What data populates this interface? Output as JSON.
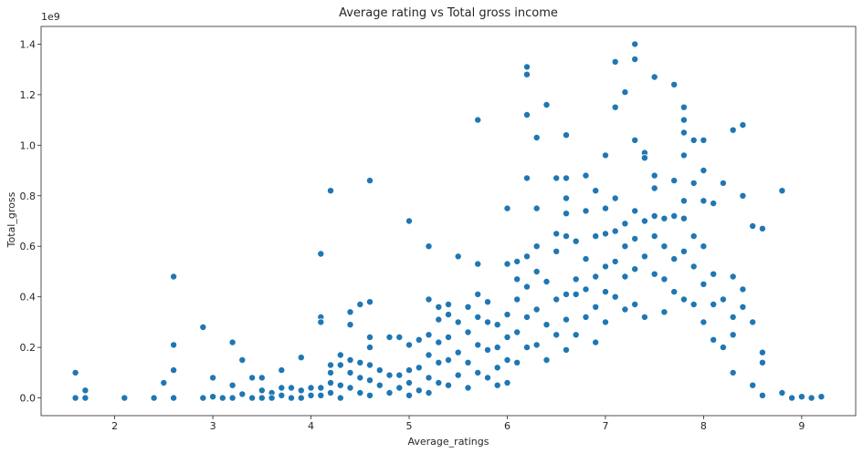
{
  "chart_data": {
    "type": "scatter",
    "title": "Average rating vs Total gross income",
    "xlabel": "Average_ratings",
    "ylabel": "Total_gross",
    "y_offset_label": "1e9",
    "xlim": [
      1.25,
      9.55
    ],
    "ylim": [
      -0.07,
      1.47
    ],
    "x_ticks": [
      2,
      3,
      4,
      5,
      6,
      7,
      8,
      9
    ],
    "x_tick_labels": [
      "2",
      "3",
      "4",
      "5",
      "6",
      "7",
      "8",
      "9"
    ],
    "y_ticks": [
      0.0,
      0.2,
      0.4,
      0.6,
      0.8,
      1.0,
      1.2,
      1.4
    ],
    "y_tick_labels": [
      "0.0",
      "0.2",
      "0.4",
      "0.6",
      "0.8",
      "1.0",
      "1.2",
      "1.4"
    ],
    "grid": false,
    "legend": "none",
    "point_color": "#1f77b4",
    "points": [
      [
        1.6,
        0.1
      ],
      [
        1.6,
        0.0
      ],
      [
        1.7,
        0.03
      ],
      [
        1.7,
        0.0
      ],
      [
        2.1,
        0.0
      ],
      [
        2.4,
        0.0
      ],
      [
        2.5,
        0.06
      ],
      [
        2.6,
        0.48
      ],
      [
        2.6,
        0.21
      ],
      [
        2.6,
        0.11
      ],
      [
        2.6,
        0.0
      ],
      [
        2.9,
        0.28
      ],
      [
        2.9,
        0.0
      ],
      [
        3.0,
        0.08
      ],
      [
        3.0,
        0.005
      ],
      [
        3.1,
        0.0
      ],
      [
        3.2,
        0.22
      ],
      [
        3.2,
        0.05
      ],
      [
        3.2,
        0.0
      ],
      [
        3.3,
        0.15
      ],
      [
        3.3,
        0.015
      ],
      [
        3.4,
        0.08
      ],
      [
        3.4,
        0.0
      ],
      [
        3.5,
        0.08
      ],
      [
        3.5,
        0.03
      ],
      [
        3.5,
        0.0
      ],
      [
        3.6,
        0.02
      ],
      [
        3.6,
        0.0
      ],
      [
        3.7,
        0.11
      ],
      [
        3.7,
        0.04
      ],
      [
        3.7,
        0.01
      ],
      [
        3.8,
        0.04
      ],
      [
        3.8,
        0.0
      ],
      [
        3.9,
        0.16
      ],
      [
        3.9,
        0.03
      ],
      [
        3.9,
        0.0
      ],
      [
        4.0,
        0.04
      ],
      [
        4.0,
        0.01
      ],
      [
        4.1,
        0.57
      ],
      [
        4.1,
        0.32
      ],
      [
        4.1,
        0.3
      ],
      [
        4.1,
        0.04
      ],
      [
        4.1,
        0.01
      ],
      [
        4.2,
        0.82
      ],
      [
        4.2,
        0.13
      ],
      [
        4.2,
        0.1
      ],
      [
        4.2,
        0.06
      ],
      [
        4.2,
        0.02
      ],
      [
        4.3,
        0.17
      ],
      [
        4.3,
        0.13
      ],
      [
        4.3,
        0.05
      ],
      [
        4.3,
        0.0
      ],
      [
        4.4,
        0.34
      ],
      [
        4.4,
        0.29
      ],
      [
        4.4,
        0.15
      ],
      [
        4.4,
        0.1
      ],
      [
        4.4,
        0.04
      ],
      [
        4.5,
        0.37
      ],
      [
        4.5,
        0.14
      ],
      [
        4.5,
        0.08
      ],
      [
        4.5,
        0.02
      ],
      [
        4.6,
        0.86
      ],
      [
        4.6,
        0.38
      ],
      [
        4.6,
        0.24
      ],
      [
        4.6,
        0.2
      ],
      [
        4.6,
        0.13
      ],
      [
        4.6,
        0.07
      ],
      [
        4.6,
        0.01
      ],
      [
        4.7,
        0.11
      ],
      [
        4.7,
        0.05
      ],
      [
        4.8,
        0.24
      ],
      [
        4.8,
        0.09
      ],
      [
        4.8,
        0.02
      ],
      [
        4.9,
        0.24
      ],
      [
        4.9,
        0.09
      ],
      [
        4.9,
        0.04
      ],
      [
        5.0,
        0.7
      ],
      [
        5.0,
        0.21
      ],
      [
        5.0,
        0.11
      ],
      [
        5.0,
        0.06
      ],
      [
        5.0,
        0.01
      ],
      [
        5.1,
        0.23
      ],
      [
        5.1,
        0.12
      ],
      [
        5.1,
        0.03
      ],
      [
        5.2,
        0.6
      ],
      [
        5.2,
        0.39
      ],
      [
        5.2,
        0.25
      ],
      [
        5.2,
        0.17
      ],
      [
        5.2,
        0.08
      ],
      [
        5.2,
        0.02
      ],
      [
        5.3,
        0.36
      ],
      [
        5.3,
        0.31
      ],
      [
        5.3,
        0.22
      ],
      [
        5.3,
        0.14
      ],
      [
        5.3,
        0.06
      ],
      [
        5.4,
        0.37
      ],
      [
        5.4,
        0.33
      ],
      [
        5.4,
        0.24
      ],
      [
        5.4,
        0.15
      ],
      [
        5.4,
        0.05
      ],
      [
        5.5,
        0.56
      ],
      [
        5.5,
        0.3
      ],
      [
        5.5,
        0.18
      ],
      [
        5.5,
        0.09
      ],
      [
        5.6,
        0.36
      ],
      [
        5.6,
        0.26
      ],
      [
        5.6,
        0.14
      ],
      [
        5.6,
        0.04
      ],
      [
        5.7,
        1.1
      ],
      [
        5.7,
        0.53
      ],
      [
        5.7,
        0.41
      ],
      [
        5.7,
        0.32
      ],
      [
        5.7,
        0.21
      ],
      [
        5.7,
        0.1
      ],
      [
        5.8,
        0.38
      ],
      [
        5.8,
        0.3
      ],
      [
        5.8,
        0.19
      ],
      [
        5.8,
        0.08
      ],
      [
        5.9,
        0.29
      ],
      [
        5.9,
        0.2
      ],
      [
        5.9,
        0.12
      ],
      [
        5.9,
        0.05
      ],
      [
        6.0,
        0.75
      ],
      [
        6.0,
        0.53
      ],
      [
        6.0,
        0.33
      ],
      [
        6.0,
        0.24
      ],
      [
        6.0,
        0.15
      ],
      [
        6.0,
        0.06
      ],
      [
        6.1,
        0.54
      ],
      [
        6.1,
        0.47
      ],
      [
        6.1,
        0.39
      ],
      [
        6.1,
        0.26
      ],
      [
        6.1,
        0.14
      ],
      [
        6.2,
        1.31
      ],
      [
        6.2,
        1.28
      ],
      [
        6.2,
        1.12
      ],
      [
        6.2,
        0.87
      ],
      [
        6.2,
        0.56
      ],
      [
        6.2,
        0.44
      ],
      [
        6.2,
        0.32
      ],
      [
        6.2,
        0.2
      ],
      [
        6.3,
        1.03
      ],
      [
        6.3,
        0.75
      ],
      [
        6.3,
        0.6
      ],
      [
        6.3,
        0.5
      ],
      [
        6.3,
        0.35
      ],
      [
        6.3,
        0.21
      ],
      [
        6.4,
        1.16
      ],
      [
        6.4,
        0.46
      ],
      [
        6.4,
        0.29
      ],
      [
        6.4,
        0.15
      ],
      [
        6.5,
        0.87
      ],
      [
        6.5,
        0.65
      ],
      [
        6.5,
        0.58
      ],
      [
        6.5,
        0.39
      ],
      [
        6.5,
        0.25
      ],
      [
        6.6,
        1.04
      ],
      [
        6.6,
        0.87
      ],
      [
        6.6,
        0.79
      ],
      [
        6.6,
        0.73
      ],
      [
        6.6,
        0.64
      ],
      [
        6.6,
        0.41
      ],
      [
        6.6,
        0.31
      ],
      [
        6.6,
        0.19
      ],
      [
        6.7,
        0.62
      ],
      [
        6.7,
        0.47
      ],
      [
        6.7,
        0.41
      ],
      [
        6.7,
        0.25
      ],
      [
        6.8,
        0.88
      ],
      [
        6.8,
        0.74
      ],
      [
        6.8,
        0.55
      ],
      [
        6.8,
        0.43
      ],
      [
        6.8,
        0.32
      ],
      [
        6.9,
        0.82
      ],
      [
        6.9,
        0.64
      ],
      [
        6.9,
        0.48
      ],
      [
        6.9,
        0.36
      ],
      [
        6.9,
        0.22
      ],
      [
        7.0,
        0.96
      ],
      [
        7.0,
        0.75
      ],
      [
        7.0,
        0.65
      ],
      [
        7.0,
        0.52
      ],
      [
        7.0,
        0.42
      ],
      [
        7.0,
        0.3
      ],
      [
        7.1,
        1.33
      ],
      [
        7.1,
        1.15
      ],
      [
        7.1,
        0.79
      ],
      [
        7.1,
        0.66
      ],
      [
        7.1,
        0.54
      ],
      [
        7.1,
        0.4
      ],
      [
        7.2,
        1.21
      ],
      [
        7.2,
        0.69
      ],
      [
        7.2,
        0.6
      ],
      [
        7.2,
        0.48
      ],
      [
        7.2,
        0.35
      ],
      [
        7.3,
        1.4
      ],
      [
        7.3,
        1.34
      ],
      [
        7.3,
        1.02
      ],
      [
        7.3,
        0.74
      ],
      [
        7.3,
        0.63
      ],
      [
        7.3,
        0.51
      ],
      [
        7.3,
        0.37
      ],
      [
        7.4,
        0.97
      ],
      [
        7.4,
        0.95
      ],
      [
        7.4,
        0.7
      ],
      [
        7.4,
        0.56
      ],
      [
        7.4,
        0.32
      ],
      [
        7.5,
        1.27
      ],
      [
        7.5,
        0.88
      ],
      [
        7.5,
        0.83
      ],
      [
        7.5,
        0.72
      ],
      [
        7.5,
        0.64
      ],
      [
        7.5,
        0.49
      ],
      [
        7.6,
        0.71
      ],
      [
        7.6,
        0.6
      ],
      [
        7.6,
        0.47
      ],
      [
        7.6,
        0.34
      ],
      [
        7.7,
        1.24
      ],
      [
        7.7,
        0.86
      ],
      [
        7.7,
        0.72
      ],
      [
        7.7,
        0.55
      ],
      [
        7.7,
        0.42
      ],
      [
        7.8,
        1.15
      ],
      [
        7.8,
        1.1
      ],
      [
        7.8,
        1.05
      ],
      [
        7.8,
        0.96
      ],
      [
        7.8,
        0.78
      ],
      [
        7.8,
        0.71
      ],
      [
        7.8,
        0.58
      ],
      [
        7.8,
        0.39
      ],
      [
        7.9,
        1.02
      ],
      [
        7.9,
        0.85
      ],
      [
        7.9,
        0.64
      ],
      [
        7.9,
        0.52
      ],
      [
        7.9,
        0.37
      ],
      [
        8.0,
        1.02
      ],
      [
        8.0,
        0.9
      ],
      [
        8.0,
        0.78
      ],
      [
        8.0,
        0.6
      ],
      [
        8.0,
        0.45
      ],
      [
        8.0,
        0.3
      ],
      [
        8.1,
        0.77
      ],
      [
        8.1,
        0.49
      ],
      [
        8.1,
        0.37
      ],
      [
        8.1,
        0.23
      ],
      [
        8.2,
        0.85
      ],
      [
        8.2,
        0.39
      ],
      [
        8.2,
        0.2
      ],
      [
        8.3,
        1.06
      ],
      [
        8.3,
        0.48
      ],
      [
        8.3,
        0.32
      ],
      [
        8.3,
        0.25
      ],
      [
        8.3,
        0.1
      ],
      [
        8.4,
        1.08
      ],
      [
        8.4,
        0.8
      ],
      [
        8.4,
        0.43
      ],
      [
        8.4,
        0.36
      ],
      [
        8.5,
        0.68
      ],
      [
        8.5,
        0.3
      ],
      [
        8.5,
        0.05
      ],
      [
        8.6,
        0.67
      ],
      [
        8.6,
        0.18
      ],
      [
        8.6,
        0.14
      ],
      [
        8.6,
        0.01
      ],
      [
        8.8,
        0.82
      ],
      [
        8.8,
        0.02
      ],
      [
        8.9,
        0.0
      ],
      [
        9.0,
        0.005
      ],
      [
        9.1,
        0.0
      ],
      [
        9.2,
        0.005
      ]
    ]
  }
}
